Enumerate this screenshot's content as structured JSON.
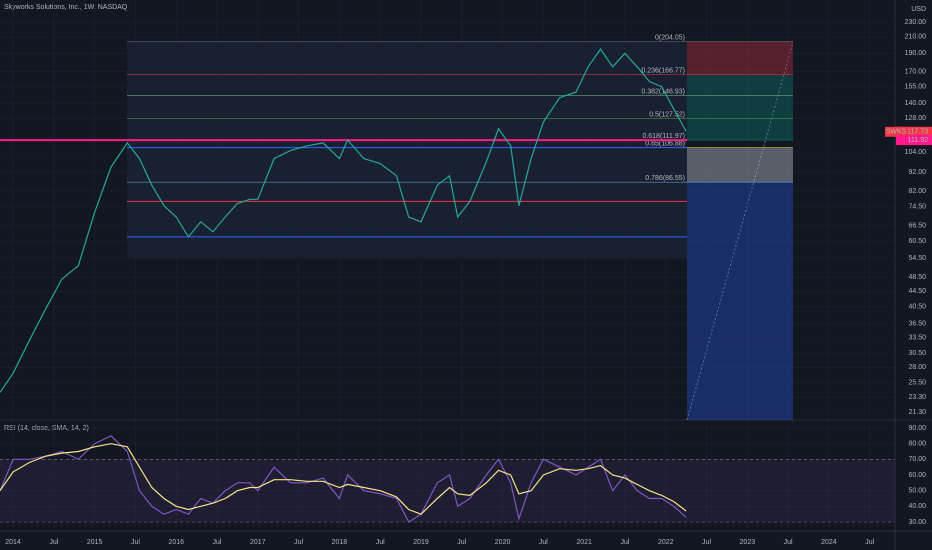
{
  "chart_data": [
    {
      "type": "line",
      "title": "Skyworks Solutions, Inc., 1W, NASDAQ",
      "currency": "USD",
      "x": [
        2013.84,
        2014.0,
        2014.2,
        2014.4,
        2014.6,
        2014.8,
        2015.0,
        2015.2,
        2015.4,
        2015.55,
        2015.7,
        2015.85,
        2016.0,
        2016.15,
        2016.3,
        2016.45,
        2016.6,
        2016.75,
        2016.9,
        2017.0,
        2017.2,
        2017.4,
        2017.6,
        2017.8,
        2018.0,
        2018.1,
        2018.3,
        2018.5,
        2018.7,
        2018.85,
        2019.0,
        2019.2,
        2019.35,
        2019.45,
        2019.6,
        2019.8,
        2019.95,
        2020.1,
        2020.2,
        2020.35,
        2020.5,
        2020.7,
        2020.9,
        2021.05,
        2021.2,
        2021.35,
        2021.5,
        2021.65,
        2021.8,
        2021.95,
        2022.1,
        2022.25
      ],
      "series": [
        {
          "name": "SWKS",
          "color": "#26a69a",
          "values": [
            24,
            27,
            33,
            40,
            48,
            52,
            72,
            95,
            110,
            100,
            85,
            75,
            70,
            62,
            68,
            64,
            70,
            76,
            78,
            78,
            100,
            105,
            108,
            110,
            100,
            112,
            100,
            97,
            90,
            70,
            68,
            85,
            90,
            70,
            77,
            98,
            120,
            108,
            75,
            100,
            125,
            145,
            150,
            175,
            195,
            175,
            190,
            175,
            160,
            155,
            135,
            118
          ]
        }
      ],
      "last_price": 117.73,
      "marked_price": 111.92,
      "log_scale": true,
      "xlim": [
        2013.84,
        2024.81
      ],
      "xticks": [
        {
          "value": 2014,
          "label": "2014"
        },
        {
          "value": 2014.5,
          "label": "Jul"
        },
        {
          "value": 2015,
          "label": "2015"
        },
        {
          "value": 2015.5,
          "label": "Jul"
        },
        {
          "value": 2016,
          "label": "2016"
        },
        {
          "value": 2016.5,
          "label": "Jul"
        },
        {
          "value": 2017,
          "label": "2017"
        },
        {
          "value": 2017.5,
          "label": "Jul"
        },
        {
          "value": 2018,
          "label": "2018"
        },
        {
          "value": 2018.5,
          "label": "Jul"
        },
        {
          "value": 2019,
          "label": "2019"
        },
        {
          "value": 2019.5,
          "label": "Jul"
        },
        {
          "value": 2020,
          "label": "2020"
        },
        {
          "value": 2020.5,
          "label": "Jul"
        },
        {
          "value": 2021,
          "label": "2021"
        },
        {
          "value": 2021.5,
          "label": "Jul"
        },
        {
          "value": 2022,
          "label": "2022"
        },
        {
          "value": 2022.5,
          "label": "Jul"
        },
        {
          "value": 2023,
          "label": "2023"
        },
        {
          "value": 2023.5,
          "label": "Jul"
        },
        {
          "value": 2024,
          "label": "2024"
        },
        {
          "value": 2024.5,
          "label": "Jul"
        }
      ],
      "ylim": [
        20.3,
        263
      ],
      "yticks": [
        {
          "value": 230,
          "label": "230.00"
        },
        {
          "value": 210,
          "label": "210.00"
        },
        {
          "value": 190,
          "label": "190.00"
        },
        {
          "value": 170,
          "label": "170.00"
        },
        {
          "value": 155,
          "label": "155.00"
        },
        {
          "value": 140,
          "label": "140.00"
        },
        {
          "value": 128,
          "label": "128.00"
        },
        {
          "value": 104,
          "label": "104.00"
        },
        {
          "value": 92,
          "label": "92.00"
        },
        {
          "value": 82,
          "label": "82.00"
        },
        {
          "value": 74.5,
          "label": "74.50"
        },
        {
          "value": 66.5,
          "label": "66.50"
        },
        {
          "value": 60.5,
          "label": "60.50"
        },
        {
          "value": 54.5,
          "label": "54.50"
        },
        {
          "value": 48.5,
          "label": "48.50"
        },
        {
          "value": 44.5,
          "label": "44.50"
        },
        {
          "value": 40.5,
          "label": "40.50"
        },
        {
          "value": 36.5,
          "label": "36.50"
        },
        {
          "value": 33.5,
          "label": "33.50"
        },
        {
          "value": 30.5,
          "label": "30.50"
        },
        {
          "value": 28,
          "label": "28.00"
        },
        {
          "value": 25.5,
          "label": "25.50"
        },
        {
          "value": 23.3,
          "label": "23.30"
        },
        {
          "value": 21.3,
          "label": "21.30"
        }
      ],
      "levels": [
        {
          "value": 111.92,
          "color": "#ff1a8c"
        },
        {
          "value": 106.88,
          "color": "#2962ff"
        },
        {
          "value": 77,
          "color": "#f23645"
        },
        {
          "value": 62,
          "color": "#2962ff"
        }
      ],
      "fib": [
        {
          "value": 204.05,
          "label": "0(204.05)",
          "color": "#787b86"
        },
        {
          "value": 166.77,
          "label": "0.236(166.77)",
          "color": "#f23645"
        },
        {
          "value": 146.93,
          "label": "0.382(146.93)",
          "color": "#81c784"
        },
        {
          "value": 127.52,
          "label": "0.5(127.52)",
          "color": "#4caf50"
        },
        {
          "value": 111.97,
          "label": "0.618(111.97)",
          "color": "#089981"
        },
        {
          "value": 106.88,
          "label": "0.65(106.88)",
          "color": "#ffeb3b"
        },
        {
          "value": 86.55,
          "label": "0.786(86.55)",
          "color": "#64b5f6"
        }
      ]
    },
    {
      "type": "line",
      "title": "RSI (14, close, SMA, 14, 2)",
      "x": [
        2013.84,
        2014.0,
        2014.2,
        2014.4,
        2014.6,
        2014.8,
        2015.0,
        2015.2,
        2015.4,
        2015.55,
        2015.7,
        2015.85,
        2016.0,
        2016.15,
        2016.3,
        2016.45,
        2016.6,
        2016.75,
        2016.9,
        2017.0,
        2017.2,
        2017.4,
        2017.6,
        2017.8,
        2018.0,
        2018.1,
        2018.3,
        2018.5,
        2018.7,
        2018.85,
        2019.0,
        2019.2,
        2019.35,
        2019.45,
        2019.6,
        2019.8,
        2019.95,
        2020.1,
        2020.2,
        2020.35,
        2020.5,
        2020.7,
        2020.9,
        2021.05,
        2021.2,
        2021.35,
        2021.5,
        2021.65,
        2021.8,
        2021.95,
        2022.1,
        2022.25
      ],
      "series": [
        {
          "color": "#7e57c2",
          "values": [
            50,
            70,
            70,
            72,
            75,
            70,
            80,
            85,
            75,
            50,
            40,
            35,
            38,
            35,
            45,
            42,
            50,
            55,
            55,
            50,
            65,
            55,
            55,
            58,
            45,
            60,
            50,
            48,
            45,
            30,
            35,
            55,
            60,
            40,
            45,
            60,
            70,
            55,
            32,
            55,
            70,
            65,
            60,
            65,
            70,
            50,
            60,
            50,
            45,
            45,
            40,
            33
          ]
        },
        {
          "color": "#f7e48a",
          "values": [
            50,
            62,
            68,
            72,
            74,
            75,
            78,
            80,
            78,
            65,
            52,
            45,
            40,
            38,
            40,
            42,
            45,
            50,
            52,
            52,
            57,
            57,
            56,
            56,
            52,
            54,
            52,
            50,
            46,
            38,
            35,
            45,
            52,
            48,
            47,
            55,
            63,
            60,
            48,
            50,
            60,
            64,
            63,
            64,
            66,
            60,
            58,
            54,
            50,
            47,
            43,
            37
          ]
        }
      ],
      "bands": [
        30,
        70
      ],
      "xlim": [
        2013.84,
        2024.81
      ],
      "ylim": [
        24.9,
        95.1
      ],
      "yticks": [
        {
          "value": 90,
          "label": "90.00"
        },
        {
          "value": 80,
          "label": "80.00"
        },
        {
          "value": 70,
          "label": "70.00"
        },
        {
          "value": 60,
          "label": "60.00"
        },
        {
          "value": 50,
          "label": "50.00"
        },
        {
          "value": 40,
          "label": "40.00"
        },
        {
          "value": 30,
          "label": "30.00"
        }
      ]
    }
  ]
}
